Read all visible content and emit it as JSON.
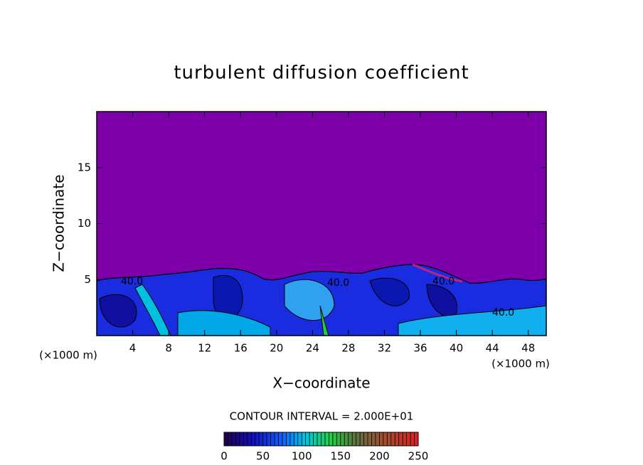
{
  "chart_data": {
    "type": "contour",
    "title": "turbulent diffusion coefficient",
    "xlabel": "X−coordinate",
    "ylabel": "Z−coordinate",
    "x_unit_left": "(×1000 m)",
    "x_unit_right": "(×1000 m)",
    "contour_interval_label": "CONTOUR INTERVAL = 2.000E+01",
    "contour_labels": [
      "40.0",
      "40.0",
      "40.0",
      "40.0"
    ],
    "xlim": [
      0,
      50
    ],
    "xticks": [
      4,
      8,
      12,
      16,
      20,
      24,
      28,
      32,
      36,
      40,
      44,
      48
    ],
    "ylim": [
      0,
      20
    ],
    "yticks": [
      5,
      10,
      15
    ],
    "clim": [
      0,
      250
    ],
    "cticks": [
      0,
      50,
      100,
      150,
      200,
      250
    ]
  }
}
